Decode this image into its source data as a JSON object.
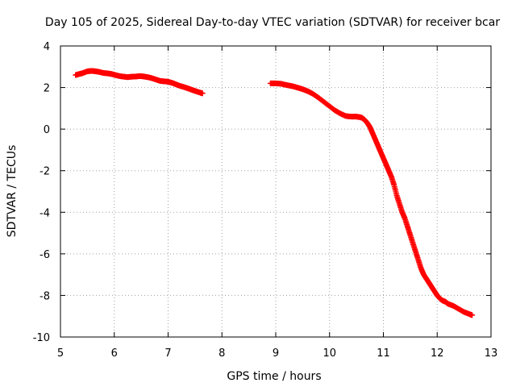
{
  "chart_data": {
    "type": "scatter",
    "title": "Day 105 of 2025, Sidereal Day-to-day VTEC variation (SDTVAR) for receiver bcar",
    "xlabel": "GPS time / hours",
    "ylabel": "SDTVAR / TECUs",
    "xlim": [
      5,
      13
    ],
    "ylim": [
      -10,
      4
    ],
    "xticks": [
      5,
      6,
      7,
      8,
      9,
      10,
      11,
      12,
      13
    ],
    "yticks": [
      4,
      2,
      0,
      -2,
      -4,
      -6,
      -8,
      -10
    ],
    "grid": true,
    "marker": "plus",
    "color": "#ff0000",
    "series": [
      {
        "x": [
          5.28,
          5.35,
          5.42,
          5.5,
          5.58,
          5.65,
          5.72,
          5.8,
          5.88,
          5.95,
          6.02,
          6.1,
          6.18,
          6.25,
          6.32,
          6.4,
          6.48,
          6.55,
          6.62,
          6.7,
          6.78,
          6.85,
          6.92,
          7.0,
          7.08,
          7.15,
          7.22,
          7.3,
          7.38,
          7.45,
          7.52,
          7.6,
          7.64
        ],
        "y": [
          2.6,
          2.65,
          2.7,
          2.78,
          2.8,
          2.78,
          2.75,
          2.7,
          2.68,
          2.65,
          2.6,
          2.55,
          2.52,
          2.5,
          2.52,
          2.53,
          2.55,
          2.53,
          2.5,
          2.45,
          2.38,
          2.32,
          2.3,
          2.28,
          2.22,
          2.15,
          2.08,
          2.02,
          1.95,
          1.88,
          1.82,
          1.75,
          1.72
        ]
      },
      {
        "x": [
          8.9,
          9.0,
          9.1,
          9.2,
          9.3,
          9.4,
          9.5,
          9.6,
          9.7,
          9.8,
          9.9,
          10.0,
          10.1,
          10.2,
          10.3,
          10.4,
          10.5,
          10.55,
          10.6,
          10.65,
          10.7,
          10.75,
          10.8,
          10.85,
          10.9,
          10.95,
          11.0,
          11.05,
          11.1,
          11.15,
          11.2,
          11.25,
          11.3,
          11.35,
          11.4,
          11.45,
          11.5,
          11.55,
          11.6,
          11.65,
          11.7,
          11.75,
          11.8,
          11.85,
          11.9,
          11.95,
          12.0,
          12.05,
          12.1,
          12.15,
          12.2,
          12.3,
          12.4,
          12.5,
          12.6,
          12.65
        ],
        "y": [
          2.2,
          2.2,
          2.18,
          2.12,
          2.07,
          2.0,
          1.92,
          1.82,
          1.68,
          1.5,
          1.3,
          1.1,
          0.9,
          0.75,
          0.63,
          0.6,
          0.6,
          0.58,
          0.55,
          0.45,
          0.3,
          0.1,
          -0.2,
          -0.5,
          -0.8,
          -1.1,
          -1.4,
          -1.7,
          -2.0,
          -2.3,
          -2.7,
          -3.2,
          -3.6,
          -4.0,
          -4.3,
          -4.7,
          -5.1,
          -5.5,
          -5.9,
          -6.3,
          -6.7,
          -7.0,
          -7.2,
          -7.4,
          -7.6,
          -7.8,
          -8.0,
          -8.15,
          -8.25,
          -8.3,
          -8.4,
          -8.5,
          -8.65,
          -8.8,
          -8.9,
          -8.95
        ]
      }
    ]
  }
}
